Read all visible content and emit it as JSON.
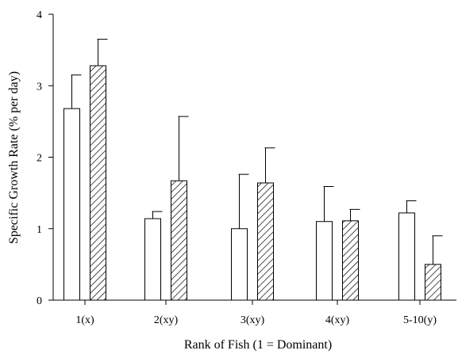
{
  "chart_data": {
    "type": "bar",
    "title": "",
    "xlabel": "Rank of Fish (1 = Dominant)",
    "ylabel": "Specific Growth Rate (% per day)",
    "ylim": [
      0,
      4
    ],
    "yticks": [
      "0",
      "1",
      "2",
      "3",
      "4"
    ],
    "categories": [
      "1(x)",
      "2(xy)",
      "3(xy)",
      "4(xy)",
      "5-10(y)"
    ],
    "grid": false,
    "legend": "none",
    "series": [
      {
        "fill": "open",
        "values": [
          2.68,
          1.14,
          1.0,
          1.1,
          1.22
        ],
        "errors": [
          0.47,
          0.1,
          0.76,
          0.49,
          0.17
        ]
      },
      {
        "fill": "hatched",
        "values": [
          3.28,
          1.67,
          1.64,
          1.11,
          0.5
        ],
        "errors": [
          0.37,
          0.9,
          0.49,
          0.16,
          0.4
        ]
      }
    ]
  }
}
